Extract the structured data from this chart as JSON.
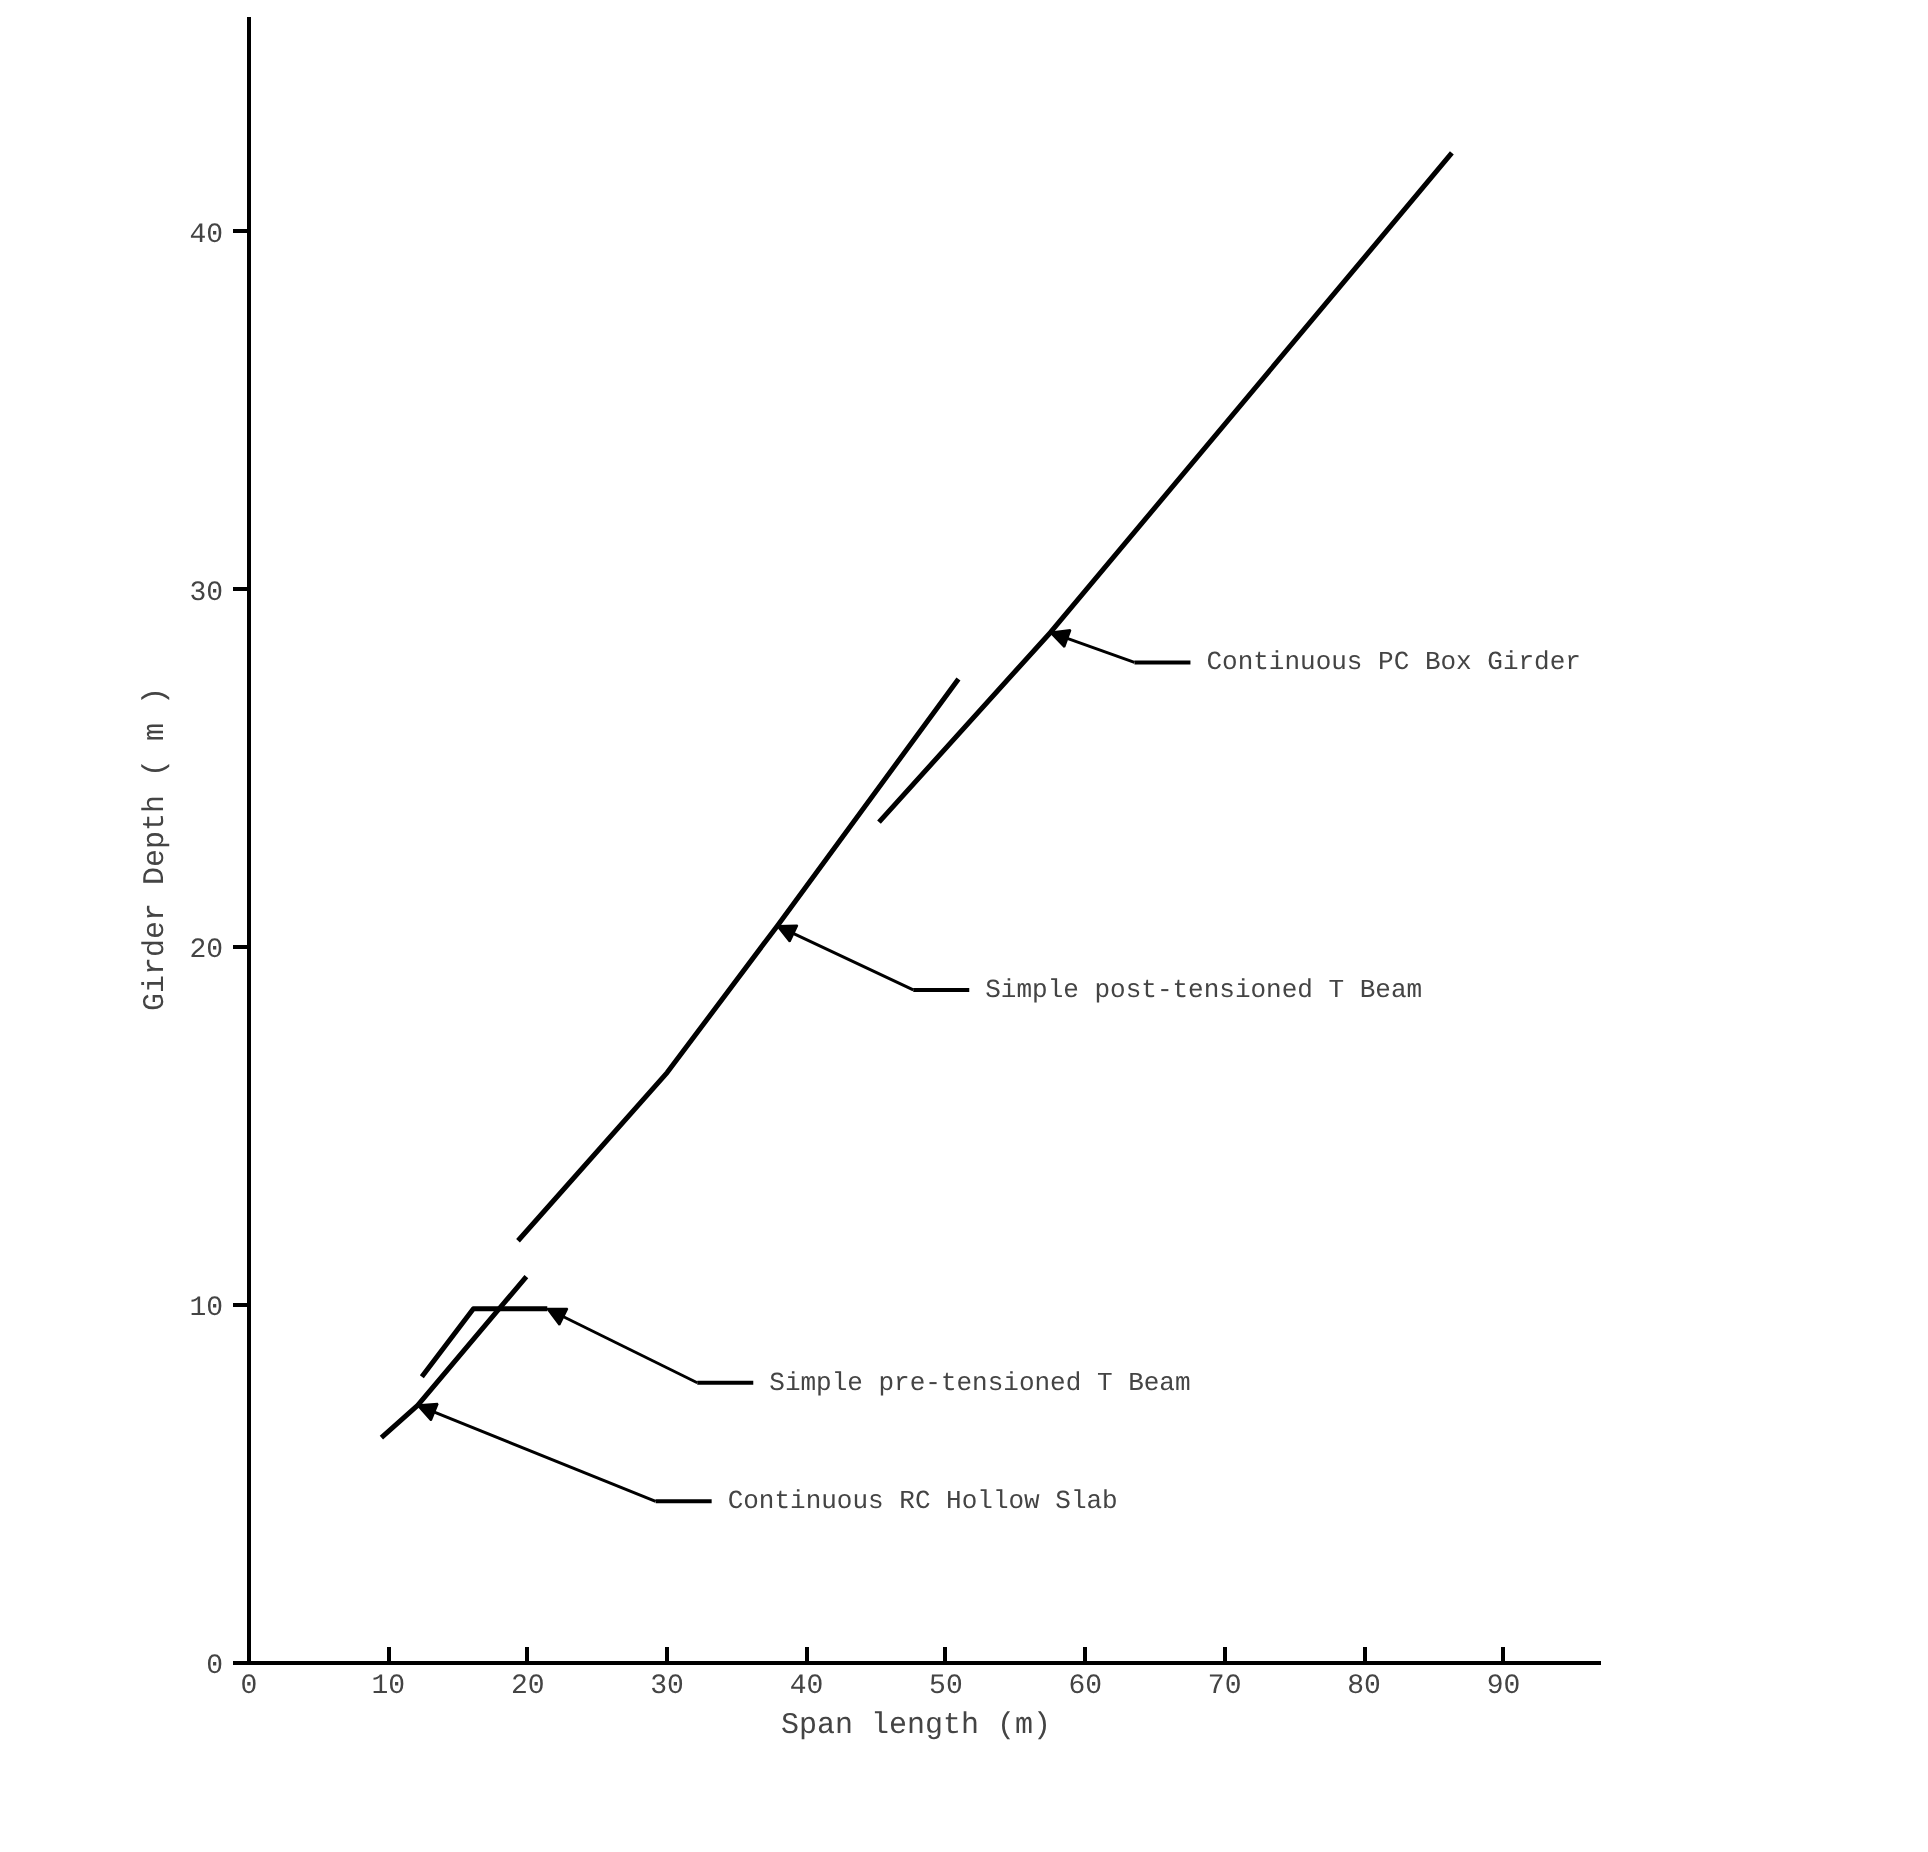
{
  "chart_data": {
    "type": "line",
    "xlabel": "Span length  (m)",
    "ylabel": "Girder Depth  ( m )",
    "xlim": [
      0,
      97
    ],
    "ylim": [
      0,
      46
    ],
    "xticks": [
      0,
      10,
      20,
      30,
      40,
      50,
      60,
      70,
      80,
      90
    ],
    "yticks": [
      0,
      10,
      20,
      30,
      40
    ],
    "grid": false,
    "marker": "none",
    "line_style": "solid",
    "series": [
      {
        "color": "#000000",
        "x": [
          45.2,
          57.5,
          86.3
        ],
        "values": [
          23.5,
          28.8,
          42.2
        ]
      },
      {
        "color": "#000000",
        "x": [
          19.3,
          30,
          37.9,
          50.9
        ],
        "values": [
          11.8,
          16.5,
          20.6,
          27.5
        ]
      },
      {
        "color": "#000000",
        "x": [
          12.4,
          16.1,
          21.4
        ],
        "values": [
          8.0,
          9.9,
          9.9
        ]
      },
      {
        "color": "#000000",
        "x": [
          9.5,
          12.1,
          19.9
        ],
        "values": [
          6.3,
          7.2,
          10.8
        ]
      }
    ],
    "annotations": [
      "Continuous PC Box Girder",
      "Simple post-tensioned T Beam",
      "Simple pre-tensioned T Beam",
      "Continuous RC Hollow Slab"
    ]
  }
}
